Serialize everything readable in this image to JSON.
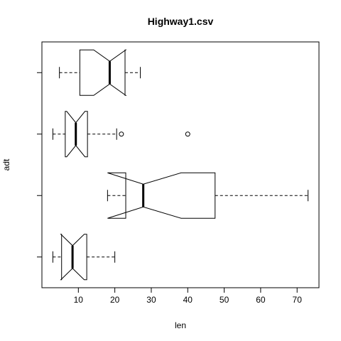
{
  "chart_data": {
    "type": "boxplot",
    "orientation": "horizontal",
    "title": "Highway1.csv",
    "xlabel": "len",
    "ylabel": "adt",
    "xlim": [
      0,
      76
    ],
    "x_ticks": [
      10,
      20,
      30,
      40,
      50,
      60,
      70
    ],
    "notched": true,
    "grid": false,
    "groups": [
      {
        "stats": {
          "min": 3.0,
          "q1": 5.4,
          "median": 8.4,
          "q3": 12.3,
          "max": 20.0,
          "notch_low": 5.2,
          "notch_high": 11.6
        },
        "outliers": []
      },
      {
        "stats": {
          "min": 18.0,
          "q1": 23.0,
          "median": 27.8,
          "q3": 47.5,
          "max": 73.0,
          "notch_low": 18.0,
          "notch_high": 38.2
        },
        "outliers": []
      },
      {
        "stats": {
          "min": 3.0,
          "q1": 6.4,
          "median": 9.3,
          "q3": 12.5,
          "max": 20.5,
          "notch_low": 6.8,
          "notch_high": 11.8
        },
        "outliers": [
          21.8,
          40.0
        ]
      },
      {
        "stats": {
          "min": 4.8,
          "q1": 10.4,
          "median": 18.6,
          "q3": 22.8,
          "max": 27.0,
          "notch_low": 14.2,
          "notch_high": 23.0
        },
        "outliers": []
      }
    ]
  }
}
